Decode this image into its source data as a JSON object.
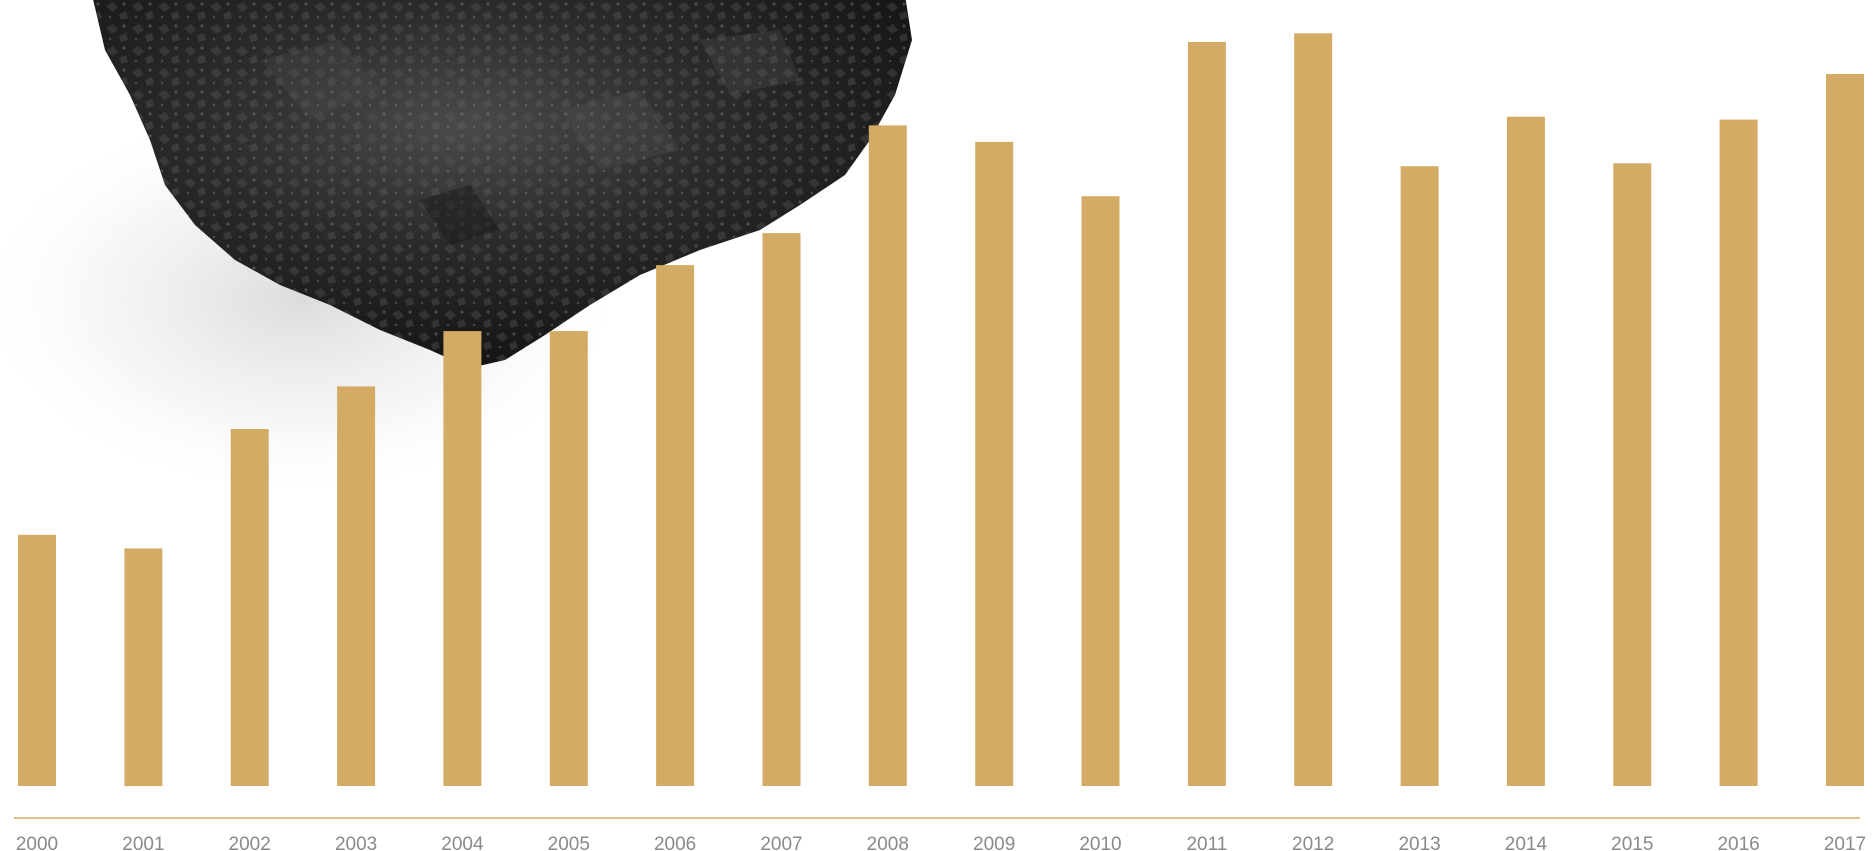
{
  "chart_data": {
    "type": "bar",
    "title": "",
    "xlabel": "",
    "ylabel": "",
    "categories": [
      "2000",
      "2001",
      "2002",
      "2003",
      "2004",
      "2005",
      "2006",
      "2007",
      "2008",
      "2009",
      "2010",
      "2011",
      "2012",
      "2013",
      "2014",
      "2015",
      "2016",
      "2017"
    ],
    "values": [
      259,
      245,
      368,
      412,
      469,
      469,
      537,
      570,
      681,
      664,
      608,
      767,
      776,
      639,
      690,
      642,
      687,
      734
    ],
    "ylim": [
      0,
      800
    ],
    "grid": false,
    "legend": "none",
    "bar_color": "#d4ab64",
    "axis_color": "#d4ab64",
    "tick_label_color": "#8a8a8a",
    "background_image": "coal-lump"
  }
}
